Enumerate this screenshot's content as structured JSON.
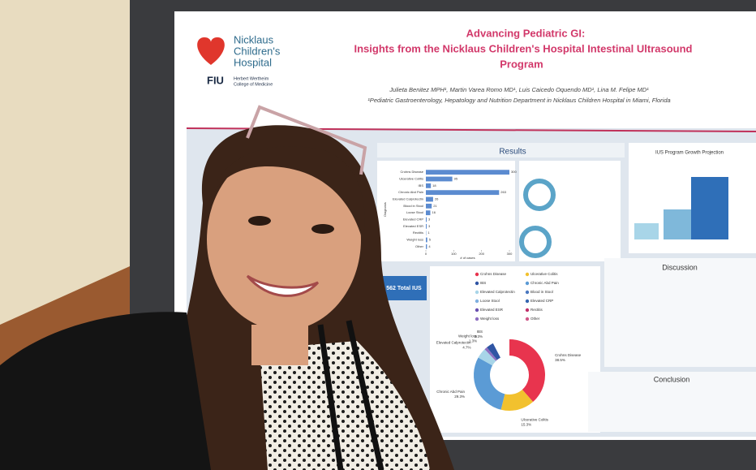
{
  "poster": {
    "hospital_line1": "Nicklaus",
    "hospital_line2": "Children's",
    "hospital_line3": "Hospital",
    "school": "FIU",
    "college_line1": "Herbert Wertheim",
    "college_line2": "College of Medicine",
    "title_line1": "Advancing Pediatric GI:",
    "title_line2": "Insights from the Nicklaus Children's Hospital Intestinal Ultrasound",
    "title_line3": "Program",
    "authors": "Julieta Benitez MPH¹, Martin Varea Romo MD¹, Luis Caicedo Oquendo MD¹, Lina M. Felipe MD¹",
    "affiliation": "¹Pediatric Gastroenterology, Hepatology and Nutrition Department in Nicklaus Children Hospital in Miami, Florida",
    "results": "Results",
    "growth": "IUS Program Growth Projection",
    "discussion": "Discussion",
    "conclusion": "Conclusion",
    "total": "562 Total IUS"
  },
  "chart_data": [
    {
      "type": "bar",
      "x_label": "# of cases",
      "y_label": "Diagnosis",
      "categories": [
        "Crohns Disease",
        "Ulcerative Colitis",
        "IBS",
        "Chronic Abd Pain",
        "Elevated Calprotectin",
        "Blood in Stool",
        "Loose Stool",
        "Elevated CRP",
        "Elevated ESR",
        "Rectitis",
        "Weight loss",
        "Other"
      ],
      "values": [
        300,
        95,
        18,
        263,
        26,
        21,
        16,
        3,
        3,
        1,
        5,
        4
      ],
      "color": "#5b8bd0",
      "xlim": [
        0,
        300
      ],
      "xticks": [
        0,
        100,
        200,
        300
      ]
    },
    {
      "type": "donut",
      "categories": [
        "Crohns Disease",
        "Ulcerative Colitis",
        "Chronic Abd Pain",
        "Elevated Calprotectin",
        "Weight loss",
        "IBS"
      ],
      "values": [
        38.5,
        15.3,
        29.3,
        4.7,
        1.3,
        3.3
      ],
      "value_labels": [
        "38.5%",
        "15.3%",
        "29.3%",
        "4.7%",
        "1.3%",
        "3.3%"
      ],
      "colors": [
        "#e8344e",
        "#f2c12e",
        "#5b9bd5",
        "#a8d5e8",
        "#8e6fc1",
        "#2f55a4"
      ],
      "legend": [
        "Crohns Disease",
        "Ulcerative Colitis",
        "IBS",
        "Chronic Abd Pain",
        "Elevated Calprotectin",
        "Blood in Stool",
        "Loose Stool",
        "Elevated CRP",
        "Elevated ESR",
        "Rectitis",
        "Weight loss",
        "Other"
      ],
      "legend_colors": [
        "#e8344e",
        "#f2c12e",
        "#2f55a4",
        "#5b9bd5",
        "#a8d5e8",
        "#4a78c0",
        "#7fb0e0",
        "#3466b0",
        "#6a4fb0",
        "#c0306a",
        "#8e6fc1",
        "#d05a8a"
      ]
    }
  ]
}
